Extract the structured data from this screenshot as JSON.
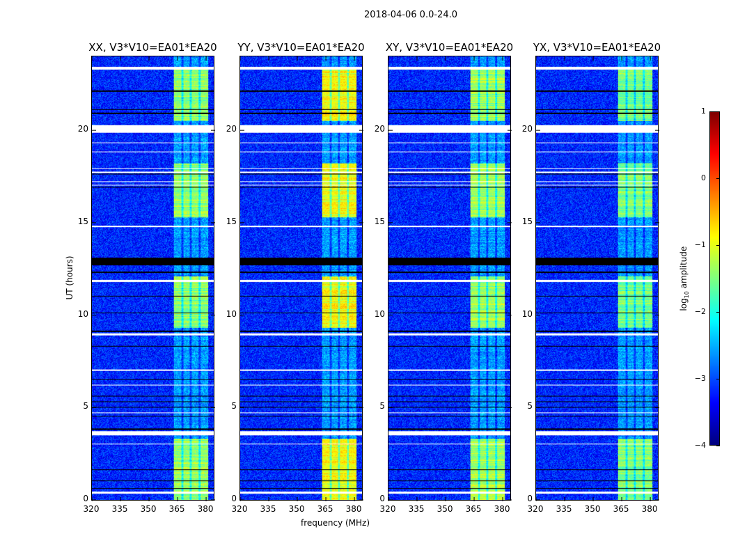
{
  "chart_data": {
    "type": "heatmap",
    "title": "2018-04-06 0.0-24.0",
    "xlabel": "frequency (MHz)",
    "ylabel": "UT (hours)",
    "xlim": [
      320,
      384
    ],
    "ylim": [
      0,
      24
    ],
    "xticks": [
      320,
      335,
      350,
      365,
      380
    ],
    "yticks": [
      0,
      5,
      10,
      15,
      20
    ],
    "panels": [
      {
        "title": "XX, V3*V10=EA01*EA20",
        "rfi_peak_log_amp": -1.4
      },
      {
        "title": "YY, V3*V10=EA01*EA20",
        "rfi_peak_log_amp": -0.9
      },
      {
        "title": "XY, V3*V10=EA01*EA20",
        "rfi_peak_log_amp": -1.3
      },
      {
        "title": "YX, V3*V10=EA01*EA20",
        "rfi_peak_log_amp": -1.5
      }
    ],
    "background_log_amp": -3.2,
    "rfi_band_mhz": [
      363,
      381
    ],
    "rfi_subband_gaps_mhz": [
      367.5,
      372,
      376.5
    ],
    "active_periods_hours": [
      [
        0,
        3.3
      ],
      [
        9.3,
        12.1
      ],
      [
        15.3,
        18.2
      ],
      [
        20.5,
        23.3
      ]
    ],
    "flagged_hours_white": [
      [
        23.3,
        23.45
      ],
      [
        19.85,
        20.3
      ],
      [
        19.3,
        19.35
      ],
      [
        18.8,
        18.85
      ],
      [
        17.9,
        17.95
      ],
      [
        17.7,
        17.75
      ],
      [
        17.2,
        17.25
      ],
      [
        17.0,
        17.05
      ],
      [
        14.75,
        14.85
      ],
      [
        11.8,
        11.9
      ],
      [
        8.9,
        9.0
      ],
      [
        7.0,
        7.05
      ],
      [
        6.2,
        6.25
      ],
      [
        4.7,
        4.75
      ],
      [
        3.5,
        3.7
      ],
      [
        3.0,
        3.05
      ],
      [
        0.35,
        0.45
      ]
    ],
    "flagged_hours_black": [
      [
        22.1,
        22.15
      ],
      [
        21.1,
        21.15
      ],
      [
        20.9,
        20.95
      ],
      [
        17.6,
        17.65
      ],
      [
        16.9,
        16.95
      ],
      [
        12.7,
        13.1
      ],
      [
        12.3,
        12.35
      ],
      [
        11.0,
        11.05
      ],
      [
        10.1,
        10.15
      ],
      [
        9.1,
        9.15
      ],
      [
        8.3,
        8.35
      ],
      [
        6.5,
        6.55
      ],
      [
        5.6,
        5.65
      ],
      [
        5.3,
        5.35
      ],
      [
        5.0,
        5.05
      ],
      [
        4.5,
        4.55
      ],
      [
        3.8,
        3.85
      ],
      [
        1.6,
        1.65
      ],
      [
        1.0,
        1.05
      ],
      [
        0.6,
        0.65
      ]
    ],
    "colorbar": {
      "label_prefix": "log",
      "label_sub": "10",
      "label_suffix": " amplitude",
      "range": [
        -4,
        1
      ],
      "ticks": [
        1,
        0,
        -1,
        -2,
        -3,
        -4
      ],
      "colormap": "jet"
    }
  }
}
